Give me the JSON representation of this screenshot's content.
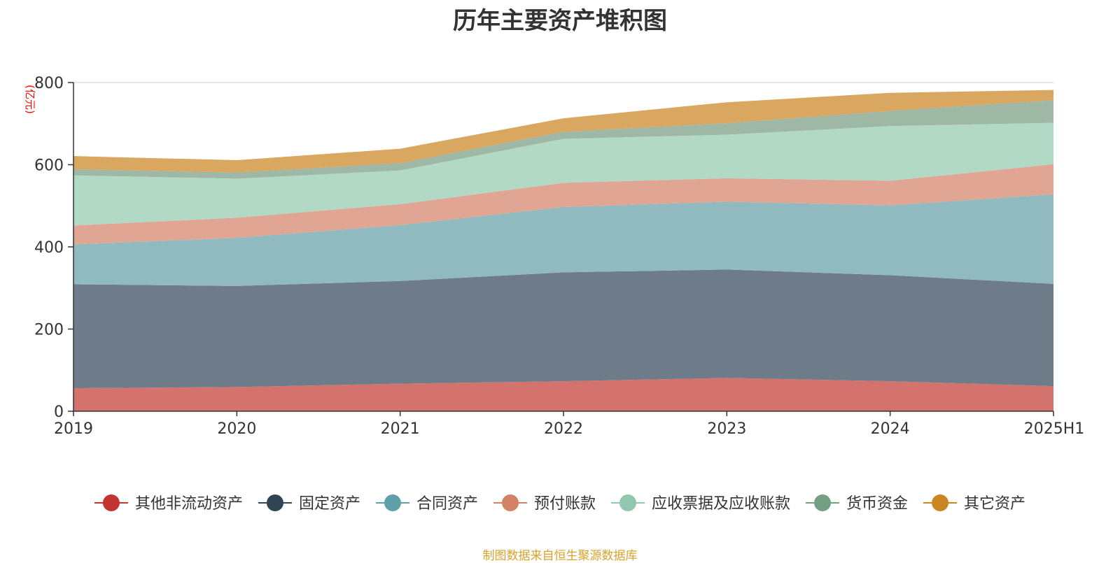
{
  "title": "历年主要资产堆积图",
  "source_note": "制图数据来自恒生聚源数据库",
  "chart_data": {
    "type": "area",
    "stacked": true,
    "title": "历年主要资产堆积图",
    "ylabel": "(亿元)",
    "ylim": [
      0,
      800
    ],
    "yticks": [
      0,
      200,
      400,
      600,
      800
    ],
    "categories": [
      "2019",
      "2020",
      "2021",
      "2022",
      "2023",
      "2024",
      "2025H1"
    ],
    "grid": true,
    "legend_position": "bottom",
    "series": [
      {
        "name": "其他非流动资产",
        "color": "#c23531",
        "fill": "#d4726e",
        "values": [
          56,
          59,
          67,
          73,
          81,
          73,
          61
        ]
      },
      {
        "name": "固定资产",
        "color": "#2f4554",
        "fill": "#6d7c88",
        "values": [
          253,
          246,
          250,
          265,
          264,
          258,
          249
        ]
      },
      {
        "name": "合同资产",
        "color": "#61a0a8",
        "fill": "#90bac0",
        "values": [
          97,
          117,
          136,
          159,
          165,
          170,
          218
        ]
      },
      {
        "name": "预付账款",
        "color": "#d48265",
        "fill": "#e0a593",
        "values": [
          46,
          49,
          51,
          59,
          57,
          60,
          73
        ]
      },
      {
        "name": "应收票据及应收账款",
        "color": "#91c7ae",
        "fill": "#b2d8c6",
        "values": [
          122,
          95,
          82,
          107,
          106,
          133,
          101
        ]
      },
      {
        "name": "货币资金",
        "color": "#749f83",
        "fill": "#9eb8a5",
        "values": [
          15,
          15,
          18,
          17,
          28,
          37,
          55
        ]
      },
      {
        "name": "其它资产",
        "color": "#ca8622",
        "fill": "#d9a75f",
        "values": [
          32,
          30,
          35,
          33,
          51,
          44,
          25
        ]
      }
    ]
  }
}
